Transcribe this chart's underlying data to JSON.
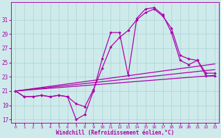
{
  "xlabel": "Windchill (Refroidissement éolien,°C)",
  "bg_color": "#ceeaea",
  "line_color": "#aa00aa",
  "marker": "D",
  "marker_size": 2.2,
  "xlim": [
    -0.5,
    23.5
  ],
  "ylim": [
    16.5,
    33.5
  ],
  "xticks": [
    0,
    1,
    2,
    3,
    4,
    5,
    6,
    7,
    8,
    9,
    10,
    11,
    12,
    13,
    14,
    15,
    16,
    17,
    18,
    19,
    20,
    21,
    22,
    23
  ],
  "yticks": [
    17,
    19,
    21,
    23,
    25,
    27,
    29,
    31
  ],
  "grid_color": "#aad4d4",
  "line1_y": [
    21.0,
    20.2,
    20.2,
    20.4,
    20.2,
    20.4,
    20.2,
    17.0,
    17.7,
    21.0,
    25.5,
    29.2,
    29.2,
    23.2,
    31.2,
    32.5,
    32.7,
    31.7,
    29.2,
    25.3,
    24.7,
    25.3,
    23.1,
    23.1
  ],
  "line2_y": [
    21.0,
    20.2,
    20.2,
    20.4,
    20.2,
    20.4,
    20.2,
    19.2,
    18.8,
    21.2,
    24.2,
    27.2,
    28.5,
    29.5,
    31.0,
    32.0,
    32.5,
    31.5,
    29.8,
    26.0,
    25.5,
    25.3,
    23.5,
    23.5
  ],
  "line3_y": [
    21.0,
    23.2
  ],
  "line4_y": [
    21.0,
    24.0
  ],
  "line5_y": [
    21.0,
    24.8
  ]
}
